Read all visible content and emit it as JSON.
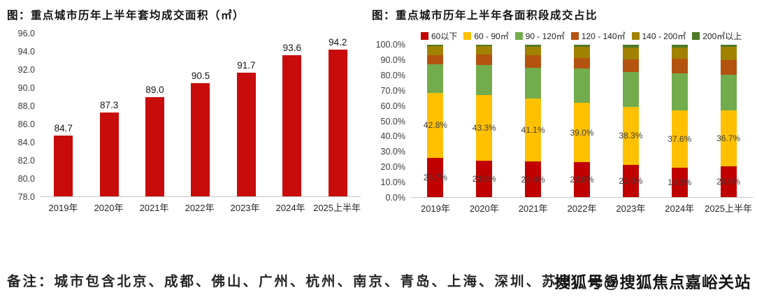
{
  "chart_data": [
    {
      "type": "bar",
      "title": "图：重点城市历年上半年套均成交面积（㎡）",
      "categories": [
        "2019年",
        "2020年",
        "2021年",
        "2022年",
        "2023年",
        "2024年",
        "2025上半年"
      ],
      "values": [
        84.7,
        87.3,
        89.0,
        90.5,
        91.7,
        93.6,
        94.2
      ],
      "data_labels": [
        "84.7",
        "87.3",
        "89.0",
        "90.5",
        "91.7",
        "93.6",
        "94.2"
      ],
      "ylim": [
        78.0,
        96.0
      ],
      "yticks": [
        "96.0",
        "94.0",
        "92.0",
        "90.0",
        "88.0",
        "86.0",
        "84.0",
        "82.0",
        "80.0",
        "78.0"
      ],
      "bar_color": "#C80B0B",
      "grid": false,
      "legend_position": "none"
    },
    {
      "type": "stacked-bar-100",
      "title": "图：重点城市历年上半年各面积段成交占比",
      "categories": [
        "2019年",
        "2020年",
        "2021年",
        "2022年",
        "2023年",
        "2024年",
        "2025上半年"
      ],
      "series": [
        {
          "name": "60以下",
          "color": "#C00000",
          "values": [
            25.7,
            23.8,
            23.4,
            22.8,
            21.0,
            19.3,
            20.0
          ],
          "labels": [
            "25.7%",
            "23.8%",
            "23.4%",
            "22.8%",
            "21.0%",
            "19.3%",
            "20.0%"
          ]
        },
        {
          "name": "60 - 90㎡",
          "color": "#FFC000",
          "values": [
            42.8,
            43.3,
            41.1,
            39.0,
            38.3,
            37.6,
            36.7
          ],
          "labels": [
            "42.8%",
            "43.3%",
            "41.1%",
            "39.0%",
            "38.3%",
            "37.6%",
            "36.7%"
          ]
        },
        {
          "name": "90 - 120㎡",
          "color": "#72AC4D",
          "values": [
            18.8,
            19.6,
            20.6,
            22.8,
            22.9,
            24.4,
            23.8
          ]
        },
        {
          "name": "120 - 140㎡",
          "color": "#B3530F",
          "values": [
            5.7,
            7.0,
            8.2,
            6.9,
            8.3,
            9.5,
            9.3
          ]
        },
        {
          "name": "140 - 200㎡",
          "color": "#A08200",
          "values": [
            6.3,
            5.6,
            5.3,
            7.1,
            7.5,
            7.2,
            8.7
          ]
        },
        {
          "name": "200㎡以上",
          "color": "#4D7A27",
          "values": [
            0.7,
            0.7,
            1.4,
            1.4,
            2.0,
            2.0,
            1.5
          ]
        }
      ],
      "ylim": [
        0,
        100
      ],
      "yticks": [
        "100.0%",
        "90.0%",
        "80.0%",
        "70.0%",
        "60.0%",
        "50.0%",
        "40.0%",
        "30.0%",
        "20.0%",
        "10.0%",
        "0.0%"
      ],
      "grid": false,
      "legend_position": "top"
    }
  ],
  "note": {
    "text": "备注：城市包含北京、成都、佛山、广州、杭州、南京、青岛、上海、深圳、苏州、无锡"
  },
  "watermark": {
    "text": "搜狐号@搜狐焦点嘉峪关站"
  }
}
